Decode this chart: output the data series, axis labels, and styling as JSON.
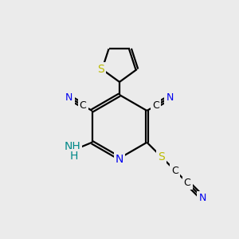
{
  "bg_color": "#ebebeb",
  "bond_color": "#000000",
  "N_color": "#0000ee",
  "S_color": "#bbbb00",
  "C_color": "#000000",
  "NH2_color": "#008888",
  "line_width": 1.6,
  "figsize": [
    3.0,
    3.0
  ],
  "dpi": 100,
  "xlim": [
    0,
    10
  ],
  "ylim": [
    0,
    10
  ]
}
